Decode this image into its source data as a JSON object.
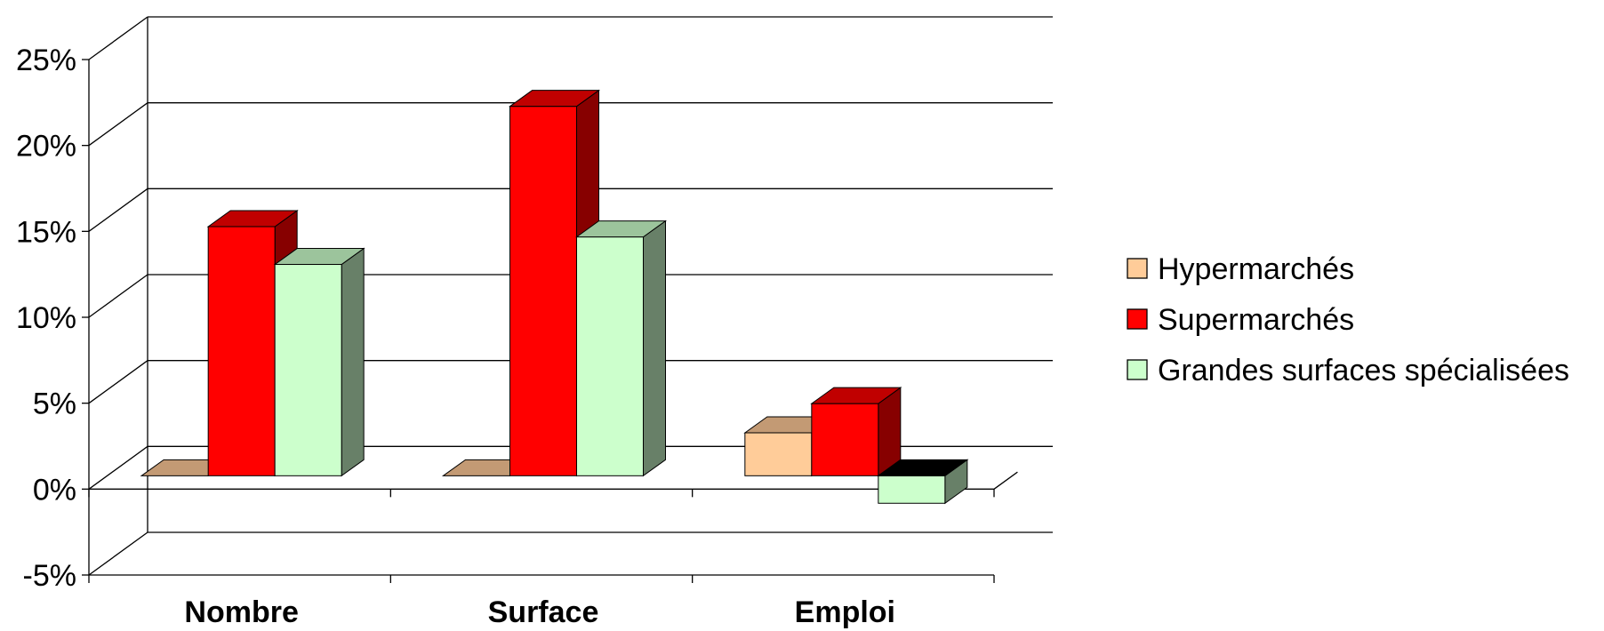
{
  "chart_data": {
    "type": "bar",
    "style": "3d-clustered-column",
    "categories": [
      "Nombre",
      "Surface",
      "Emploi"
    ],
    "series": [
      {
        "name": "Hypermarchés",
        "values": [
          0.0,
          0.0,
          2.5
        ],
        "color": "#FFCC99",
        "side_color": "#C39A74",
        "top_color": "#C39A74"
      },
      {
        "name": "Supermarchés",
        "values": [
          14.5,
          21.5,
          4.2
        ],
        "color": "#FF0000",
        "side_color": "#870000",
        "top_color": "#C00000"
      },
      {
        "name": "Grandes surfaces spécialisées",
        "values": [
          12.3,
          13.9,
          -1.6
        ],
        "color": "#CCFFCC",
        "side_color": "#688068",
        "top_color": "#9CC49C"
      }
    ],
    "y_ticks": [
      "-5%",
      "0%",
      "5%",
      "10%",
      "15%",
      "20%",
      "25%"
    ],
    "y_tick_values": [
      -5,
      0,
      5,
      10,
      15,
      20,
      25
    ],
    "ylim": [
      -5,
      25
    ],
    "grid": true,
    "legend_position": "right",
    "title": "",
    "xlabel": "",
    "ylabel": ""
  }
}
